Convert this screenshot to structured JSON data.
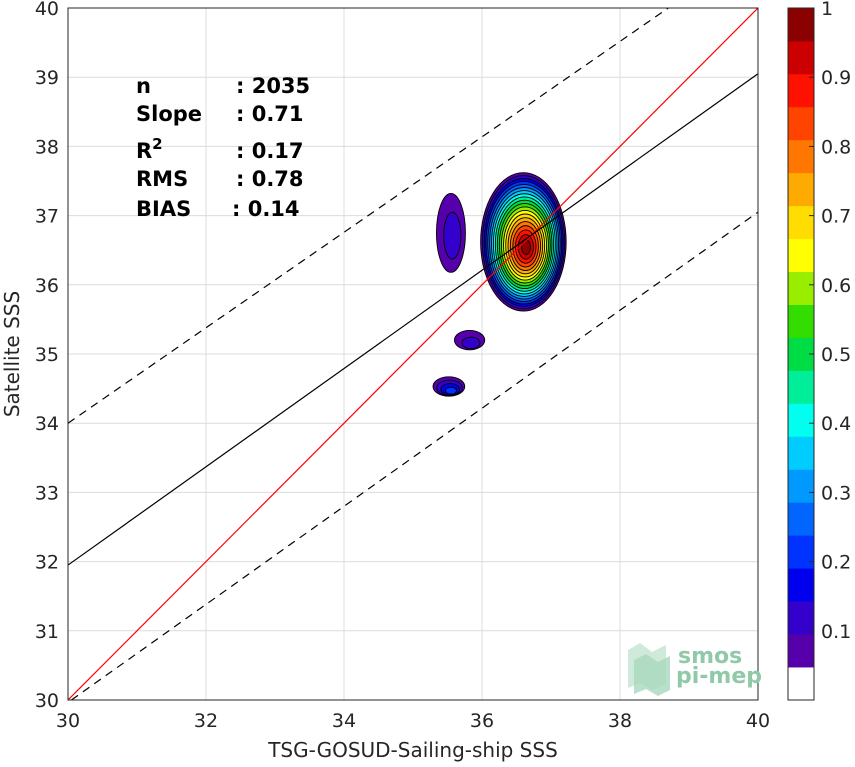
{
  "chart_data": {
    "type": "heatmap",
    "title": "",
    "xlabel": "TSG-GOSUD-Sailing-ship SSS",
    "ylabel": "Satellite SSS",
    "xlim": [
      30,
      40
    ],
    "ylim": [
      30,
      40
    ],
    "xticks": [
      "30",
      "32",
      "34",
      "36",
      "38",
      "40"
    ],
    "yticks": [
      "30",
      "31",
      "32",
      "33",
      "34",
      "35",
      "36",
      "37",
      "38",
      "39",
      "40"
    ],
    "grid": true,
    "stats": [
      {
        "label": "n",
        "value": ": 2035"
      },
      {
        "label": "Slope",
        "value": ": 0.71"
      },
      {
        "label": "R",
        "sup": "2",
        "value": ": 0.17"
      },
      {
        "label": "RMS",
        "value": ": 0.78"
      },
      {
        "label": "BIAS",
        "value": ": 0.14"
      }
    ],
    "lines": [
      {
        "role": "one-to-one",
        "color": "#ff0000",
        "dash": false,
        "points": [
          [
            30,
            30
          ],
          [
            40,
            40
          ]
        ]
      },
      {
        "role": "fit",
        "color": "#000000",
        "dash": false,
        "points": [
          [
            30,
            31.95
          ],
          [
            40,
            39.05
          ]
        ]
      },
      {
        "role": "fit-plus",
        "color": "#000000",
        "dash": true,
        "points": [
          [
            30,
            34.0
          ],
          [
            38.7,
            40
          ]
        ]
      },
      {
        "role": "fit-minus",
        "color": "#000000",
        "dash": true,
        "points": [
          [
            30.05,
            30
          ],
          [
            40,
            37.05
          ]
        ]
      }
    ],
    "density_blobs": [
      {
        "cx": 36.6,
        "cy": 36.62,
        "rx": 0.62,
        "ry": 1.0,
        "peak": 0.97
      },
      {
        "cx": 35.55,
        "cy": 36.75,
        "rx": 0.21,
        "ry": 0.57,
        "peak": 0.12
      },
      {
        "cx": 35.82,
        "cy": 35.2,
        "rx": 0.22,
        "ry": 0.14,
        "peak": 0.12
      },
      {
        "cx": 35.52,
        "cy": 34.53,
        "rx": 0.23,
        "ry": 0.14,
        "peak": 0.2
      }
    ],
    "colorbar": {
      "min": 0,
      "max": 1,
      "ticks": [
        "0.1",
        "0.2",
        "0.3",
        "0.4",
        "0.5",
        "0.6",
        "0.7",
        "0.8",
        "0.9",
        "1"
      ],
      "colors": [
        "#ffffff",
        "#5500aa",
        "#3300cc",
        "#0000ee",
        "#0033ff",
        "#0066ff",
        "#0099ff",
        "#00ccff",
        "#00ffee",
        "#00ee99",
        "#00dd44",
        "#33dd00",
        "#99ee00",
        "#ffff00",
        "#ffdd00",
        "#ffaa00",
        "#ff7700",
        "#ff4400",
        "#ff1100",
        "#cc0000",
        "#8b0000"
      ]
    },
    "logo": {
      "line1": "smos",
      "line2": "pi-mep"
    }
  }
}
